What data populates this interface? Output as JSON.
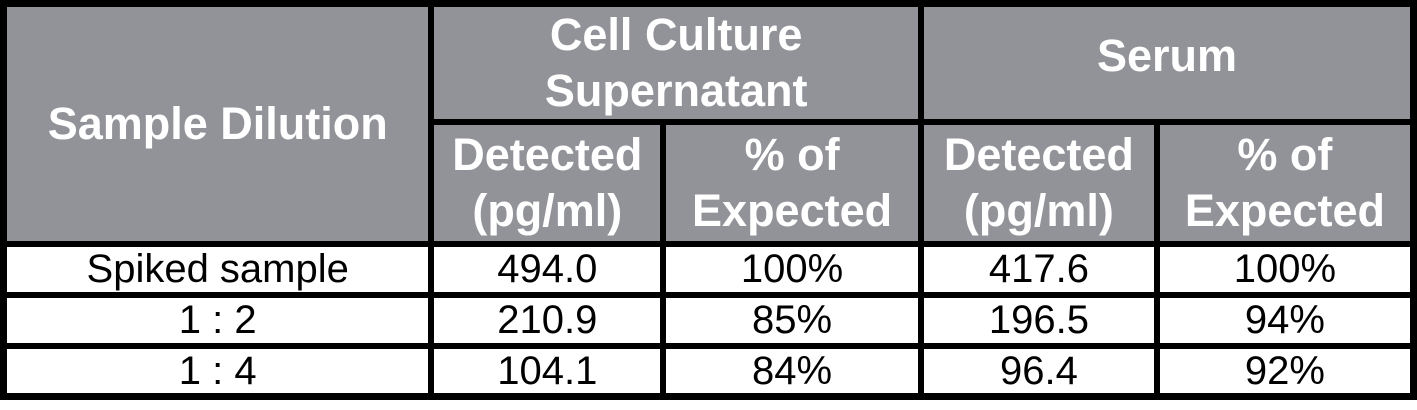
{
  "colors": {
    "header_bg": "#929399",
    "header_text": "#ffffff",
    "body_bg": "#ffffff",
    "body_text": "#000000",
    "border": "#000000"
  },
  "chart_data": {
    "type": "table",
    "title": "",
    "header": {
      "sample_dilution": "Sample Dilution",
      "group_cell_culture": "Cell Culture\nSupernatant",
      "group_serum": "Serum",
      "cc_detected": "Detected\n(pg/ml)",
      "cc_pct_expected": "% of\nExpected",
      "serum_detected": "Detected\n(pg/ml)",
      "serum_pct_expected": "% of\nExpected"
    },
    "rows": [
      {
        "dilution": "Spiked sample",
        "cc_detected": "494.0",
        "cc_pct": "100%",
        "serum_detected": "417.6",
        "serum_pct": "100%"
      },
      {
        "dilution": "1 : 2",
        "cc_detected": "210.9",
        "cc_pct": "85%",
        "serum_detected": "196.5",
        "serum_pct": "94%"
      },
      {
        "dilution": "1 : 4",
        "cc_detected": "104.1",
        "cc_pct": "84%",
        "serum_detected": "96.4",
        "serum_pct": "92%"
      }
    ]
  }
}
